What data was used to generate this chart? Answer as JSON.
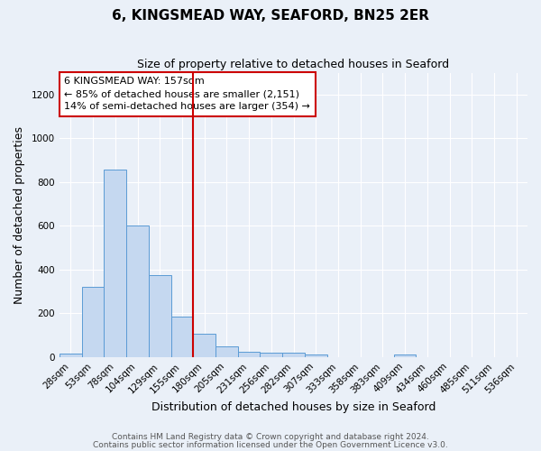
{
  "title": "6, KINGSMEAD WAY, SEAFORD, BN25 2ER",
  "subtitle": "Size of property relative to detached houses in Seaford",
  "xlabel": "Distribution of detached houses by size in Seaford",
  "ylabel": "Number of detached properties",
  "footnote1": "Contains HM Land Registry data © Crown copyright and database right 2024.",
  "footnote2": "Contains public sector information licensed under the Open Government Licence v3.0.",
  "categories": [
    "28sqm",
    "53sqm",
    "78sqm",
    "104sqm",
    "129sqm",
    "155sqm",
    "180sqm",
    "205sqm",
    "231sqm",
    "256sqm",
    "282sqm",
    "307sqm",
    "333sqm",
    "358sqm",
    "383sqm",
    "409sqm",
    "434sqm",
    "460sqm",
    "485sqm",
    "511sqm",
    "536sqm"
  ],
  "values": [
    15,
    320,
    855,
    600,
    375,
    185,
    105,
    48,
    25,
    18,
    22,
    12,
    0,
    0,
    0,
    10,
    0,
    0,
    0,
    0,
    0
  ],
  "bar_color": "#c5d8f0",
  "bar_edge_color": "#5b9bd5",
  "vline_x": 5.5,
  "vline_color": "#cc0000",
  "annotation_line1": "6 KINGSMEAD WAY: 157sqm",
  "annotation_line2": "← 85% of detached houses are smaller (2,151)",
  "annotation_line3": "14% of semi-detached houses are larger (354) →",
  "annotation_box_color": "white",
  "annotation_box_edge_color": "#cc0000",
  "ylim": [
    0,
    1300
  ],
  "background_color": "#eaf0f8",
  "grid_color": "white",
  "title_fontsize": 11,
  "subtitle_fontsize": 9,
  "axis_label_fontsize": 9,
  "tick_fontsize": 7.5,
  "annotation_fontsize": 8,
  "footnote_fontsize": 6.5
}
